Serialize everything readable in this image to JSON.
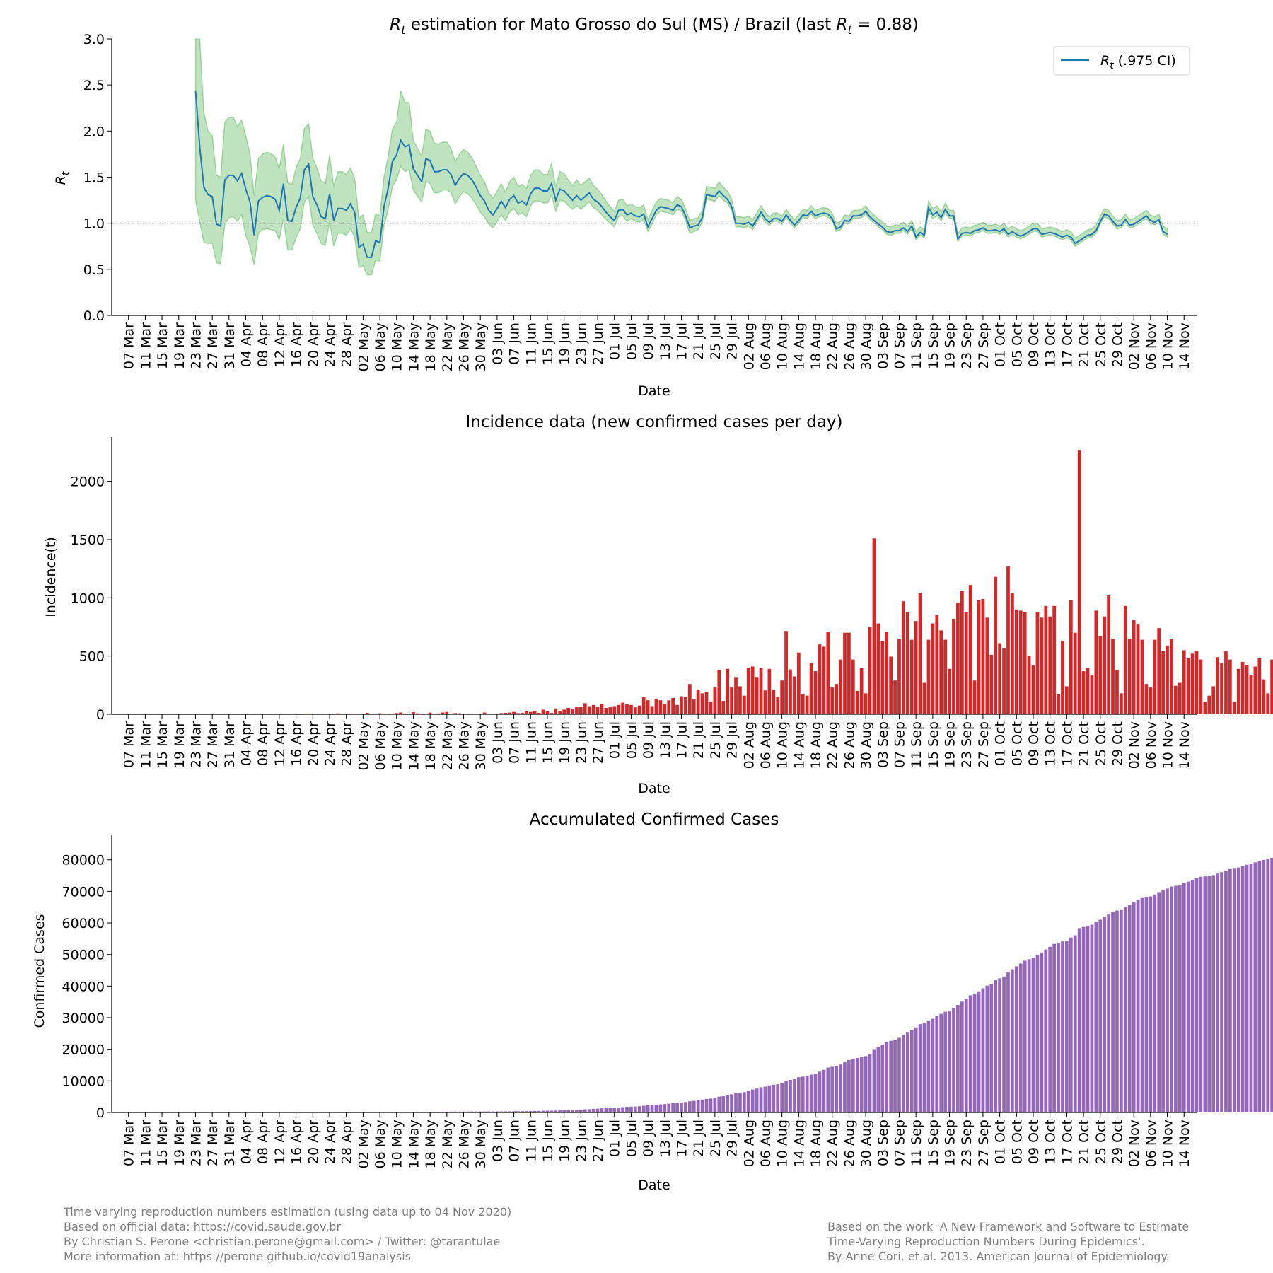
{
  "charts": {
    "rt": {
      "type": "line",
      "title_prefix": "R",
      "title_sub": "t",
      "title_mid": " estimation for Mato Grosso do Sul (MS) / Brazil (last ",
      "title_suffix": " = 0.88)",
      "ylabel_main": "R",
      "ylabel_sub": "t",
      "xlabel": "Date",
      "ylim": [
        0,
        3
      ],
      "yticks": [
        "0.0",
        "0.5",
        "1.0",
        "1.5",
        "2.0",
        "2.5",
        "3.0"
      ],
      "reference_line": 1.0,
      "legend_main": "R",
      "legend_sub": "t",
      "legend_rest": " (.975 CI)",
      "legend_position": "top-right",
      "line_color": "#1f77b4",
      "band_color": "#2ca02c"
    },
    "incidence": {
      "type": "bar",
      "title": "Incidence data (new confirmed cases per day)",
      "ylabel": "Incidence(t)",
      "xlabel": "Date",
      "ylim": [
        0,
        2380
      ],
      "yticks": [
        "0",
        "500",
        "1000",
        "1500",
        "2000"
      ],
      "color": "#d62728"
    },
    "cumulative": {
      "type": "bar",
      "title": "Accumulated Confirmed Cases",
      "ylabel": "Confirmed Cases",
      "xlabel": "Date",
      "ylim": [
        0,
        88000
      ],
      "yticks": [
        "0",
        "10000",
        "20000",
        "30000",
        "40000",
        "50000",
        "60000",
        "70000",
        "80000"
      ],
      "color": "#9467bd"
    }
  },
  "xticks": [
    "07 Mar",
    "11 Mar",
    "15 Mar",
    "19 Mar",
    "23 Mar",
    "27 Mar",
    "31 Mar",
    "04 Apr",
    "08 Apr",
    "12 Apr",
    "16 Apr",
    "20 Apr",
    "24 Apr",
    "28 Apr",
    "02 May",
    "06 May",
    "10 May",
    "14 May",
    "18 May",
    "22 May",
    "26 May",
    "30 May",
    "03 Jun",
    "07 Jun",
    "11 Jun",
    "15 Jun",
    "19 Jun",
    "23 Jun",
    "27 Jun",
    "01 Jul",
    "05 Jul",
    "09 Jul",
    "13 Jul",
    "17 Jul",
    "21 Jul",
    "25 Jul",
    "29 Jul",
    "02 Aug",
    "06 Aug",
    "10 Aug",
    "14 Aug",
    "18 Aug",
    "22 Aug",
    "26 Aug",
    "30 Aug",
    "03 Sep",
    "07 Sep",
    "11 Sep",
    "15 Sep",
    "19 Sep",
    "23 Sep",
    "27 Sep",
    "01 Oct",
    "05 Oct",
    "09 Oct",
    "13 Oct",
    "17 Oct",
    "21 Oct",
    "25 Oct",
    "29 Oct",
    "02 Nov",
    "06 Nov",
    "10 Nov",
    "14 Nov"
  ],
  "chart_data": [
    {
      "type": "line",
      "name": "rt",
      "x_start": "2020-03-23",
      "x_end": "2020-11-04",
      "y": [
        2.44,
        1.83,
        1.39,
        1.31,
        1.29,
        0.99,
        0.97,
        1.47,
        1.52,
        1.52,
        1.46,
        1.54,
        1.37,
        1.23,
        0.87,
        1.24,
        1.28,
        1.3,
        1.29,
        1.26,
        1.14,
        1.43,
        1.03,
        1.02,
        1.17,
        1.27,
        1.58,
        1.64,
        1.29,
        1.2,
        1.07,
        1.05,
        1.32,
        1.03,
        1.16,
        1.16,
        1.14,
        1.21,
        1.12,
        0.74,
        0.77,
        0.63,
        0.63,
        0.81,
        0.79,
        1.18,
        1.38,
        1.67,
        1.74,
        1.9,
        1.83,
        1.85,
        1.59,
        1.52,
        1.45,
        1.7,
        1.68,
        1.56,
        1.56,
        1.58,
        1.58,
        1.53,
        1.41,
        1.49,
        1.54,
        1.52,
        1.47,
        1.39,
        1.3,
        1.24,
        1.14,
        1.09,
        1.16,
        1.24,
        1.17,
        1.26,
        1.3,
        1.22,
        1.24,
        1.2,
        1.32,
        1.38,
        1.38,
        1.35,
        1.35,
        1.43,
        1.25,
        1.37,
        1.35,
        1.3,
        1.25,
        1.3,
        1.25,
        1.29,
        1.33,
        1.26,
        1.23,
        1.18,
        1.12,
        1.07,
        1.03,
        1.14,
        1.15,
        1.09,
        1.11,
        1.08,
        1.07,
        1.1,
        0.96,
        1.05,
        1.14,
        1.18,
        1.17,
        1.16,
        1.14,
        1.2,
        1.18,
        1.08,
        0.95,
        0.97,
        0.98,
        1.06,
        1.31,
        1.3,
        1.29,
        1.35,
        1.3,
        1.26,
        1.18,
        1.0,
        1.0,
        0.99,
        1.01,
        0.97,
        1.04,
        1.12,
        1.05,
        1.01,
        1.05,
        1.05,
        1.02,
        1.09,
        1.03,
        0.98,
        1.03,
        1.09,
        1.08,
        1.13,
        1.08,
        1.1,
        1.11,
        1.1,
        1.05,
        0.94,
        0.96,
        1.03,
        1.02,
        1.08,
        1.08,
        1.09,
        1.13,
        1.07,
        1.03,
        0.99,
        0.96,
        0.91,
        0.9,
        0.92,
        0.92,
        0.95,
        0.91,
        0.97,
        0.85,
        0.9,
        0.87,
        1.17,
        1.09,
        1.12,
        1.06,
        1.15,
        1.08,
        1.08,
        0.83,
        0.89,
        0.9,
        0.89,
        0.92,
        0.93,
        0.95,
        0.92,
        0.92,
        0.93,
        0.91,
        0.94,
        0.88,
        0.91,
        0.88,
        0.86,
        0.88,
        0.91,
        0.94,
        0.94,
        0.88,
        0.89,
        0.9,
        0.89,
        0.87,
        0.85,
        0.87,
        0.85,
        0.78,
        0.81,
        0.84,
        0.87,
        0.88,
        0.92,
        1.02,
        1.1,
        1.08,
        1.02,
        0.97,
        0.98,
        1.04,
        0.98,
        0.99,
        1.02,
        1.05,
        1.08,
        1.03,
        1.01,
        1.04,
        0.91,
        0.88
      ],
      "ci_lower": [
        1.25,
        1.02,
        0.79,
        0.78,
        0.78,
        0.57,
        0.56,
        0.99,
        1.06,
        1.07,
        1.02,
        1.09,
        0.87,
        0.74,
        0.55,
        0.89,
        0.93,
        0.94,
        0.93,
        0.92,
        0.82,
        1.05,
        0.71,
        0.71,
        0.84,
        0.94,
        1.23,
        1.29,
        0.98,
        0.89,
        0.78,
        0.76,
        1.01,
        0.75,
        0.89,
        0.89,
        0.87,
        0.94,
        0.85,
        0.52,
        0.54,
        0.44,
        0.44,
        0.6,
        0.59,
        0.97,
        1.15,
        1.4,
        1.47,
        1.62,
        1.56,
        1.58,
        1.36,
        1.29,
        1.23,
        1.45,
        1.43,
        1.33,
        1.33,
        1.36,
        1.36,
        1.33,
        1.21,
        1.29,
        1.34,
        1.32,
        1.27,
        1.2,
        1.12,
        1.07,
        0.99,
        0.95,
        1.02,
        1.09,
        1.03,
        1.12,
        1.16,
        1.09,
        1.11,
        1.07,
        1.19,
        1.24,
        1.24,
        1.22,
        1.22,
        1.3,
        1.13,
        1.25,
        1.24,
        1.19,
        1.15,
        1.19,
        1.15,
        1.19,
        1.23,
        1.17,
        1.14,
        1.09,
        1.04,
        1.0,
        0.96,
        1.07,
        1.08,
        1.02,
        1.05,
        1.02,
        1.01,
        1.04,
        0.91,
        0.99,
        1.09,
        1.13,
        1.12,
        1.11,
        1.09,
        1.15,
        1.13,
        1.03,
        0.89,
        0.91,
        0.93,
        1.01,
        1.26,
        1.25,
        1.24,
        1.3,
        1.25,
        1.22,
        1.14,
        0.96,
        0.96,
        0.95,
        0.97,
        0.93,
        1.0,
        1.08,
        1.01,
        0.98,
        1.02,
        1.02,
        0.99,
        1.06,
        1.0,
        0.95,
        1.0,
        1.06,
        1.05,
        1.1,
        1.05,
        1.07,
        1.08,
        1.07,
        1.02,
        0.91,
        0.93,
        1.0,
        0.99,
        1.05,
        1.05,
        1.06,
        1.1,
        1.04,
        1.0,
        0.96,
        0.93,
        0.88,
        0.87,
        0.89,
        0.89,
        0.92,
        0.88,
        0.94,
        0.82,
        0.87,
        0.84,
        1.13,
        1.05,
        1.08,
        1.03,
        1.11,
        1.05,
        1.05,
        0.8,
        0.86,
        0.87,
        0.86,
        0.89,
        0.9,
        0.92,
        0.89,
        0.89,
        0.9,
        0.88,
        0.91,
        0.85,
        0.88,
        0.85,
        0.83,
        0.85,
        0.88,
        0.91,
        0.91,
        0.85,
        0.86,
        0.87,
        0.86,
        0.84,
        0.82,
        0.84,
        0.82,
        0.75,
        0.78,
        0.81,
        0.84,
        0.85,
        0.89,
        0.99,
        1.07,
        1.05,
        0.99,
        0.94,
        0.95,
        1.01,
        0.95,
        0.96,
        0.99,
        1.02,
        1.05,
        1.0,
        0.98,
        1.01,
        0.88,
        0.85
      ],
      "ci_upper": [
        3.0,
        3.0,
        2.2,
        2.0,
        1.95,
        1.52,
        1.5,
        2.1,
        2.15,
        2.15,
        2.05,
        2.12,
        1.95,
        1.75,
        1.3,
        1.7,
        1.75,
        1.77,
        1.76,
        1.72,
        1.59,
        1.86,
        1.44,
        1.42,
        1.6,
        1.7,
        2.03,
        2.08,
        1.71,
        1.6,
        1.46,
        1.43,
        1.74,
        1.4,
        1.56,
        1.56,
        1.53,
        1.6,
        1.49,
        1.05,
        1.09,
        0.9,
        0.9,
        1.1,
        1.08,
        1.5,
        1.73,
        2.02,
        2.1,
        2.44,
        2.31,
        2.31,
        1.9,
        1.81,
        1.73,
        2.02,
        2.0,
        1.87,
        1.86,
        1.88,
        1.88,
        1.81,
        1.67,
        1.75,
        1.8,
        1.77,
        1.71,
        1.62,
        1.52,
        1.45,
        1.33,
        1.27,
        1.35,
        1.43,
        1.34,
        1.45,
        1.5,
        1.4,
        1.42,
        1.38,
        1.52,
        1.58,
        1.58,
        1.53,
        1.53,
        1.65,
        1.4,
        1.56,
        1.54,
        1.47,
        1.41,
        1.47,
        1.41,
        1.45,
        1.49,
        1.41,
        1.37,
        1.31,
        1.24,
        1.18,
        1.13,
        1.25,
        1.26,
        1.19,
        1.21,
        1.18,
        1.17,
        1.2,
        1.04,
        1.14,
        1.23,
        1.27,
        1.26,
        1.25,
        1.22,
        1.29,
        1.26,
        1.16,
        1.03,
        1.05,
        1.06,
        1.14,
        1.4,
        1.39,
        1.38,
        1.45,
        1.39,
        1.35,
        1.26,
        1.07,
        1.07,
        1.06,
        1.08,
        1.04,
        1.11,
        1.19,
        1.12,
        1.07,
        1.11,
        1.11,
        1.08,
        1.15,
        1.09,
        1.04,
        1.09,
        1.15,
        1.14,
        1.19,
        1.14,
        1.16,
        1.17,
        1.16,
        1.11,
        1.0,
        1.02,
        1.09,
        1.08,
        1.14,
        1.14,
        1.15,
        1.19,
        1.13,
        1.09,
        1.05,
        1.02,
        0.97,
        0.96,
        0.98,
        0.98,
        1.01,
        0.97,
        1.03,
        0.91,
        0.96,
        0.93,
        1.24,
        1.16,
        1.19,
        1.12,
        1.22,
        1.14,
        1.14,
        0.89,
        0.95,
        0.96,
        0.95,
        0.98,
        0.99,
        1.01,
        0.98,
        0.98,
        0.99,
        0.97,
        1.0,
        0.94,
        0.97,
        0.94,
        0.92,
        0.94,
        0.97,
        1.0,
        1.0,
        0.94,
        0.95,
        0.96,
        0.95,
        0.93,
        0.91,
        0.93,
        0.91,
        0.84,
        0.87,
        0.9,
        0.93,
        0.94,
        0.98,
        1.08,
        1.16,
        1.14,
        1.08,
        1.03,
        1.04,
        1.1,
        1.04,
        1.05,
        1.08,
        1.11,
        1.14,
        1.09,
        1.07,
        1.1,
        0.97,
        0.94
      ]
    },
    {
      "type": "bar",
      "name": "incidence",
      "x_start": "2020-03-07",
      "x_end": "2020-11-04",
      "values": [
        0,
        0,
        0,
        0,
        0,
        0,
        1,
        0,
        0,
        0,
        0,
        0,
        0,
        0,
        0,
        0,
        2,
        0,
        1,
        0,
        2,
        1,
        0,
        1,
        1,
        3,
        0,
        1,
        2,
        0,
        4,
        0,
        1,
        3,
        0,
        5,
        3,
        2,
        0,
        6,
        2,
        4,
        0,
        7,
        3,
        0,
        2,
        5,
        1,
        4,
        8,
        3,
        0,
        6,
        4,
        2,
        3,
        12,
        5,
        1,
        8,
        6,
        2,
        4,
        10,
        15,
        3,
        2,
        18,
        8,
        6,
        2,
        14,
        4,
        7,
        15,
        20,
        3,
        10,
        8,
        5,
        3,
        4,
        3,
        4,
        15,
        6,
        2,
        3,
        10,
        12,
        15,
        20,
        10,
        12,
        25,
        20,
        30,
        12,
        40,
        25,
        12,
        50,
        30,
        40,
        55,
        42,
        60,
        65,
        95,
        70,
        80,
        65,
        90,
        55,
        60,
        70,
        80,
        100,
        85,
        80,
        60,
        75,
        150,
        120,
        70,
        130,
        120,
        90,
        120,
        140,
        80,
        155,
        150,
        260,
        130,
        210,
        180,
        190,
        110,
        230,
        380,
        115,
        390,
        230,
        320,
        240,
        160,
        395,
        410,
        320,
        395,
        205,
        390,
        210,
        150,
        290,
        715,
        385,
        325,
        530,
        175,
        160,
        440,
        370,
        600,
        580,
        710,
        230,
        260,
        470,
        700,
        700,
        470,
        200,
        395,
        180,
        750,
        1510,
        780,
        630,
        710,
        495,
        290,
        650,
        970,
        880,
        640,
        800,
        1040,
        270,
        640,
        780,
        850,
        720,
        640,
        390,
        820,
        960,
        1060,
        880,
        1110,
        290,
        980,
        990,
        830,
        510,
        1180,
        610,
        570,
        1270,
        1040,
        900,
        890,
        880,
        500,
        420,
        880,
        830,
        930,
        840,
        930,
        170,
        630,
        240,
        980,
        700,
        2270,
        370,
        400,
        340,
        890,
        670,
        840,
        1020,
        650,
        380,
        180,
        930,
        650,
        810,
        770,
        640,
        260,
        230,
        640,
        740,
        540,
        590,
        650,
        245,
        270,
        550,
        480,
        520,
        545,
        470,
        105,
        160,
        240,
        490,
        440,
        540,
        470,
        110,
        390,
        450,
        420,
        340,
        410,
        480,
        300,
        180,
        470,
        500,
        410,
        555,
        300,
        280,
        270,
        140,
        420
      ],
      "max_value": 2270
    },
    {
      "type": "bar",
      "name": "cumulative",
      "x_start": "2020-03-07",
      "x_end": "2020-11-04",
      "final_value": 83500,
      "values": []
    }
  ],
  "footer": {
    "left": [
      "Time varying reproduction numbers estimation (using data up to 04 Nov 2020)",
      "Based on official data: https://covid.saude.gov.br",
      "By Christian S. Perone <christian.perone@gmail.com> / Twitter: @tarantulae",
      "More information at: https://perone.github.io/covid19analysis"
    ],
    "right": [
      "Based on the work 'A New Framework and Software to Estimate",
      "Time-Varying Reproduction Numbers During Epidemics'.",
      "By Anne Cori, et al. 2013. American Journal of Epidemiology."
    ]
  }
}
